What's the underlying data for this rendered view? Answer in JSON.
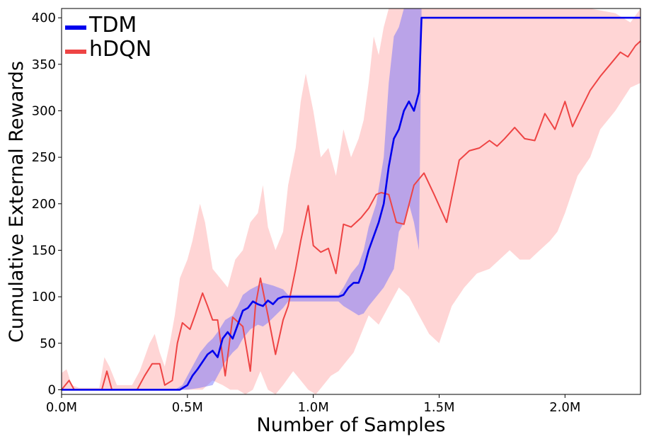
{
  "chart_data": {
    "type": "line",
    "title": "",
    "xlabel": "Number of Samples",
    "ylabel": "Cumulative External Rewards",
    "xlim": [
      0.0,
      2.3
    ],
    "ylim": [
      -5,
      410
    ],
    "x_ticks": [
      {
        "value": 0.0,
        "label": "0.0M"
      },
      {
        "value": 0.5,
        "label": "0.5M"
      },
      {
        "value": 1.0,
        "label": "1.0M"
      },
      {
        "value": 1.5,
        "label": "1.5M"
      },
      {
        "value": 2.0,
        "label": "2.0M"
      }
    ],
    "y_ticks": [
      {
        "value": 0,
        "label": "0"
      },
      {
        "value": 50,
        "label": "50"
      },
      {
        "value": 100,
        "label": "100"
      },
      {
        "value": 150,
        "label": "150"
      },
      {
        "value": 200,
        "label": "200"
      },
      {
        "value": 250,
        "label": "250"
      },
      {
        "value": 300,
        "label": "300"
      },
      {
        "value": 350,
        "label": "350"
      },
      {
        "value": 400,
        "label": "400"
      }
    ],
    "grid": false,
    "legend_position": "top-left",
    "series": [
      {
        "name": "TDM",
        "color": "#0000ee",
        "band_color": "#6666ff",
        "points": [
          [
            0.0,
            0
          ],
          [
            0.2,
            0
          ],
          [
            0.4,
            0
          ],
          [
            0.47,
            0
          ],
          [
            0.5,
            5
          ],
          [
            0.52,
            15
          ],
          [
            0.54,
            22
          ],
          [
            0.56,
            30
          ],
          [
            0.58,
            38
          ],
          [
            0.6,
            42
          ],
          [
            0.62,
            35
          ],
          [
            0.64,
            55
          ],
          [
            0.66,
            62
          ],
          [
            0.68,
            55
          ],
          [
            0.7,
            70
          ],
          [
            0.72,
            85
          ],
          [
            0.74,
            88
          ],
          [
            0.76,
            95
          ],
          [
            0.78,
            92
          ],
          [
            0.8,
            90
          ],
          [
            0.82,
            96
          ],
          [
            0.84,
            92
          ],
          [
            0.86,
            98
          ],
          [
            0.88,
            100
          ],
          [
            0.9,
            100
          ],
          [
            0.95,
            100
          ],
          [
            1.0,
            100
          ],
          [
            1.05,
            100
          ],
          [
            1.1,
            100
          ],
          [
            1.12,
            102
          ],
          [
            1.14,
            110
          ],
          [
            1.16,
            115
          ],
          [
            1.18,
            115
          ],
          [
            1.2,
            130
          ],
          [
            1.22,
            150
          ],
          [
            1.24,
            165
          ],
          [
            1.26,
            180
          ],
          [
            1.28,
            200
          ],
          [
            1.3,
            240
          ],
          [
            1.32,
            270
          ],
          [
            1.34,
            280
          ],
          [
            1.36,
            300
          ],
          [
            1.38,
            310
          ],
          [
            1.4,
            300
          ],
          [
            1.42,
            320
          ],
          [
            1.43,
            400
          ],
          [
            1.6,
            400
          ],
          [
            1.8,
            400
          ],
          [
            2.0,
            400
          ],
          [
            2.3,
            400
          ]
        ],
        "band_upper": [
          [
            0.0,
            0
          ],
          [
            0.45,
            0
          ],
          [
            0.48,
            5
          ],
          [
            0.5,
            15
          ],
          [
            0.52,
            25
          ],
          [
            0.55,
            40
          ],
          [
            0.58,
            50
          ],
          [
            0.6,
            55
          ],
          [
            0.62,
            62
          ],
          [
            0.65,
            75
          ],
          [
            0.68,
            80
          ],
          [
            0.7,
            90
          ],
          [
            0.72,
            102
          ],
          [
            0.75,
            108
          ],
          [
            0.78,
            112
          ],
          [
            0.8,
            115
          ],
          [
            0.84,
            112
          ],
          [
            0.88,
            108
          ],
          [
            0.9,
            102
          ],
          [
            1.1,
            102
          ],
          [
            1.12,
            110
          ],
          [
            1.15,
            125
          ],
          [
            1.18,
            135
          ],
          [
            1.2,
            150
          ],
          [
            1.22,
            175
          ],
          [
            1.25,
            200
          ],
          [
            1.28,
            250
          ],
          [
            1.3,
            330
          ],
          [
            1.32,
            380
          ],
          [
            1.34,
            390
          ],
          [
            1.36,
            410
          ],
          [
            1.38,
            410
          ],
          [
            1.42,
            410
          ],
          [
            1.43,
            410
          ]
        ],
        "band_lower": [
          [
            1.43,
            400
          ],
          [
            1.42,
            150
          ],
          [
            1.4,
            180
          ],
          [
            1.38,
            200
          ],
          [
            1.36,
            180
          ],
          [
            1.34,
            170
          ],
          [
            1.32,
            130
          ],
          [
            1.3,
            120
          ],
          [
            1.28,
            110
          ],
          [
            1.25,
            100
          ],
          [
            1.22,
            90
          ],
          [
            1.2,
            82
          ],
          [
            1.18,
            80
          ],
          [
            1.15,
            85
          ],
          [
            1.12,
            90
          ],
          [
            1.1,
            95
          ],
          [
            0.9,
            95
          ],
          [
            0.88,
            88
          ],
          [
            0.85,
            80
          ],
          [
            0.82,
            72
          ],
          [
            0.8,
            68
          ],
          [
            0.78,
            70
          ],
          [
            0.75,
            65
          ],
          [
            0.72,
            55
          ],
          [
            0.7,
            45
          ],
          [
            0.68,
            40
          ],
          [
            0.65,
            30
          ],
          [
            0.62,
            15
          ],
          [
            0.6,
            5
          ],
          [
            0.55,
            2
          ],
          [
            0.5,
            0
          ],
          [
            0.0,
            0
          ]
        ]
      },
      {
        "name": "hDQN",
        "color": "#ee4444",
        "band_color": "#ffb3b3",
        "points": [
          [
            0.0,
            0
          ],
          [
            0.03,
            10
          ],
          [
            0.05,
            0
          ],
          [
            0.08,
            0
          ],
          [
            0.13,
            0
          ],
          [
            0.16,
            0
          ],
          [
            0.18,
            20
          ],
          [
            0.2,
            0
          ],
          [
            0.25,
            0
          ],
          [
            0.3,
            0
          ],
          [
            0.33,
            15
          ],
          [
            0.36,
            28
          ],
          [
            0.39,
            28
          ],
          [
            0.41,
            5
          ],
          [
            0.44,
            10
          ],
          [
            0.46,
            50
          ],
          [
            0.48,
            72
          ],
          [
            0.51,
            65
          ],
          [
            0.53,
            80
          ],
          [
            0.56,
            104
          ],
          [
            0.58,
            90
          ],
          [
            0.6,
            75
          ],
          [
            0.62,
            75
          ],
          [
            0.65,
            15
          ],
          [
            0.68,
            78
          ],
          [
            0.72,
            68
          ],
          [
            0.75,
            20
          ],
          [
            0.77,
            90
          ],
          [
            0.79,
            120
          ],
          [
            0.82,
            80
          ],
          [
            0.85,
            38
          ],
          [
            0.88,
            75
          ],
          [
            0.9,
            90
          ],
          [
            0.93,
            130
          ],
          [
            0.95,
            160
          ],
          [
            0.98,
            198
          ],
          [
            1.0,
            155
          ],
          [
            1.03,
            148
          ],
          [
            1.06,
            152
          ],
          [
            1.09,
            125
          ],
          [
            1.12,
            178
          ],
          [
            1.15,
            175
          ],
          [
            1.19,
            185
          ],
          [
            1.22,
            195
          ],
          [
            1.25,
            210
          ],
          [
            1.27,
            212
          ],
          [
            1.3,
            210
          ],
          [
            1.33,
            180
          ],
          [
            1.36,
            178
          ],
          [
            1.4,
            220
          ],
          [
            1.44,
            233
          ],
          [
            1.48,
            210
          ],
          [
            1.53,
            180
          ],
          [
            1.58,
            247
          ],
          [
            1.62,
            257
          ],
          [
            1.66,
            260
          ],
          [
            1.7,
            268
          ],
          [
            1.73,
            262
          ],
          [
            1.76,
            270
          ],
          [
            1.8,
            282
          ],
          [
            1.84,
            270
          ],
          [
            1.88,
            268
          ],
          [
            1.92,
            297
          ],
          [
            1.96,
            280
          ],
          [
            2.0,
            310
          ],
          [
            2.03,
            283
          ],
          [
            2.06,
            300
          ],
          [
            2.1,
            322
          ],
          [
            2.14,
            337
          ],
          [
            2.18,
            350
          ],
          [
            2.22,
            363
          ],
          [
            2.25,
            358
          ],
          [
            2.28,
            370
          ],
          [
            2.3,
            375
          ]
        ],
        "band_upper": [
          [
            0.0,
            18
          ],
          [
            0.02,
            22
          ],
          [
            0.04,
            5
          ],
          [
            0.07,
            2
          ],
          [
            0.15,
            2
          ],
          [
            0.17,
            35
          ],
          [
            0.19,
            25
          ],
          [
            0.22,
            5
          ],
          [
            0.28,
            5
          ],
          [
            0.31,
            20
          ],
          [
            0.35,
            50
          ],
          [
            0.37,
            60
          ],
          [
            0.39,
            40
          ],
          [
            0.41,
            25
          ],
          [
            0.43,
            50
          ],
          [
            0.45,
            80
          ],
          [
            0.47,
            120
          ],
          [
            0.5,
            140
          ],
          [
            0.52,
            160
          ],
          [
            0.55,
            200
          ],
          [
            0.57,
            180
          ],
          [
            0.6,
            130
          ],
          [
            0.63,
            120
          ],
          [
            0.66,
            110
          ],
          [
            0.69,
            140
          ],
          [
            0.72,
            150
          ],
          [
            0.75,
            180
          ],
          [
            0.78,
            190
          ],
          [
            0.8,
            220
          ],
          [
            0.82,
            175
          ],
          [
            0.85,
            150
          ],
          [
            0.88,
            170
          ],
          [
            0.9,
            220
          ],
          [
            0.93,
            260
          ],
          [
            0.95,
            310
          ],
          [
            0.97,
            340
          ],
          [
            1.0,
            300
          ],
          [
            1.03,
            250
          ],
          [
            1.06,
            260
          ],
          [
            1.09,
            230
          ],
          [
            1.12,
            280
          ],
          [
            1.15,
            250
          ],
          [
            1.18,
            270
          ],
          [
            1.2,
            290
          ],
          [
            1.22,
            330
          ],
          [
            1.24,
            380
          ],
          [
            1.26,
            360
          ],
          [
            1.28,
            390
          ],
          [
            1.3,
            410
          ],
          [
            1.38,
            410
          ],
          [
            1.44,
            410
          ],
          [
            1.5,
            410
          ],
          [
            1.6,
            410
          ],
          [
            1.7,
            410
          ],
          [
            1.8,
            410
          ],
          [
            1.9,
            410
          ],
          [
            2.0,
            410
          ],
          [
            2.1,
            410
          ],
          [
            2.2,
            405
          ],
          [
            2.26,
            395
          ],
          [
            2.3,
            410
          ]
        ],
        "band_lower": [
          [
            2.3,
            330
          ],
          [
            2.26,
            325
          ],
          [
            2.2,
            300
          ],
          [
            2.14,
            280
          ],
          [
            2.1,
            250
          ],
          [
            2.05,
            230
          ],
          [
            2.0,
            190
          ],
          [
            1.97,
            170
          ],
          [
            1.94,
            160
          ],
          [
            1.9,
            150
          ],
          [
            1.86,
            140
          ],
          [
            1.82,
            140
          ],
          [
            1.78,
            150
          ],
          [
            1.74,
            140
          ],
          [
            1.7,
            130
          ],
          [
            1.65,
            125
          ],
          [
            1.6,
            110
          ],
          [
            1.55,
            90
          ],
          [
            1.5,
            50
          ],
          [
            1.46,
            60
          ],
          [
            1.42,
            80
          ],
          [
            1.38,
            100
          ],
          [
            1.34,
            110
          ],
          [
            1.3,
            90
          ],
          [
            1.26,
            70
          ],
          [
            1.22,
            80
          ],
          [
            1.19,
            60
          ],
          [
            1.16,
            40
          ],
          [
            1.13,
            30
          ],
          [
            1.1,
            20
          ],
          [
            1.07,
            15
          ],
          [
            1.04,
            5
          ],
          [
            1.01,
            -5
          ],
          [
            0.98,
            0
          ],
          [
            0.95,
            10
          ],
          [
            0.92,
            20
          ],
          [
            0.88,
            5
          ],
          [
            0.85,
            -5
          ],
          [
            0.82,
            0
          ],
          [
            0.79,
            20
          ],
          [
            0.76,
            0
          ],
          [
            0.73,
            -5
          ],
          [
            0.7,
            0
          ],
          [
            0.67,
            0
          ],
          [
            0.64,
            5
          ],
          [
            0.6,
            10
          ],
          [
            0.56,
            0
          ],
          [
            0.52,
            0
          ],
          [
            0.48,
            0
          ],
          [
            0.44,
            0
          ],
          [
            0.4,
            0
          ],
          [
            0.3,
            0
          ],
          [
            0.2,
            0
          ],
          [
            0.1,
            0
          ],
          [
            0.0,
            0
          ]
        ]
      }
    ]
  }
}
